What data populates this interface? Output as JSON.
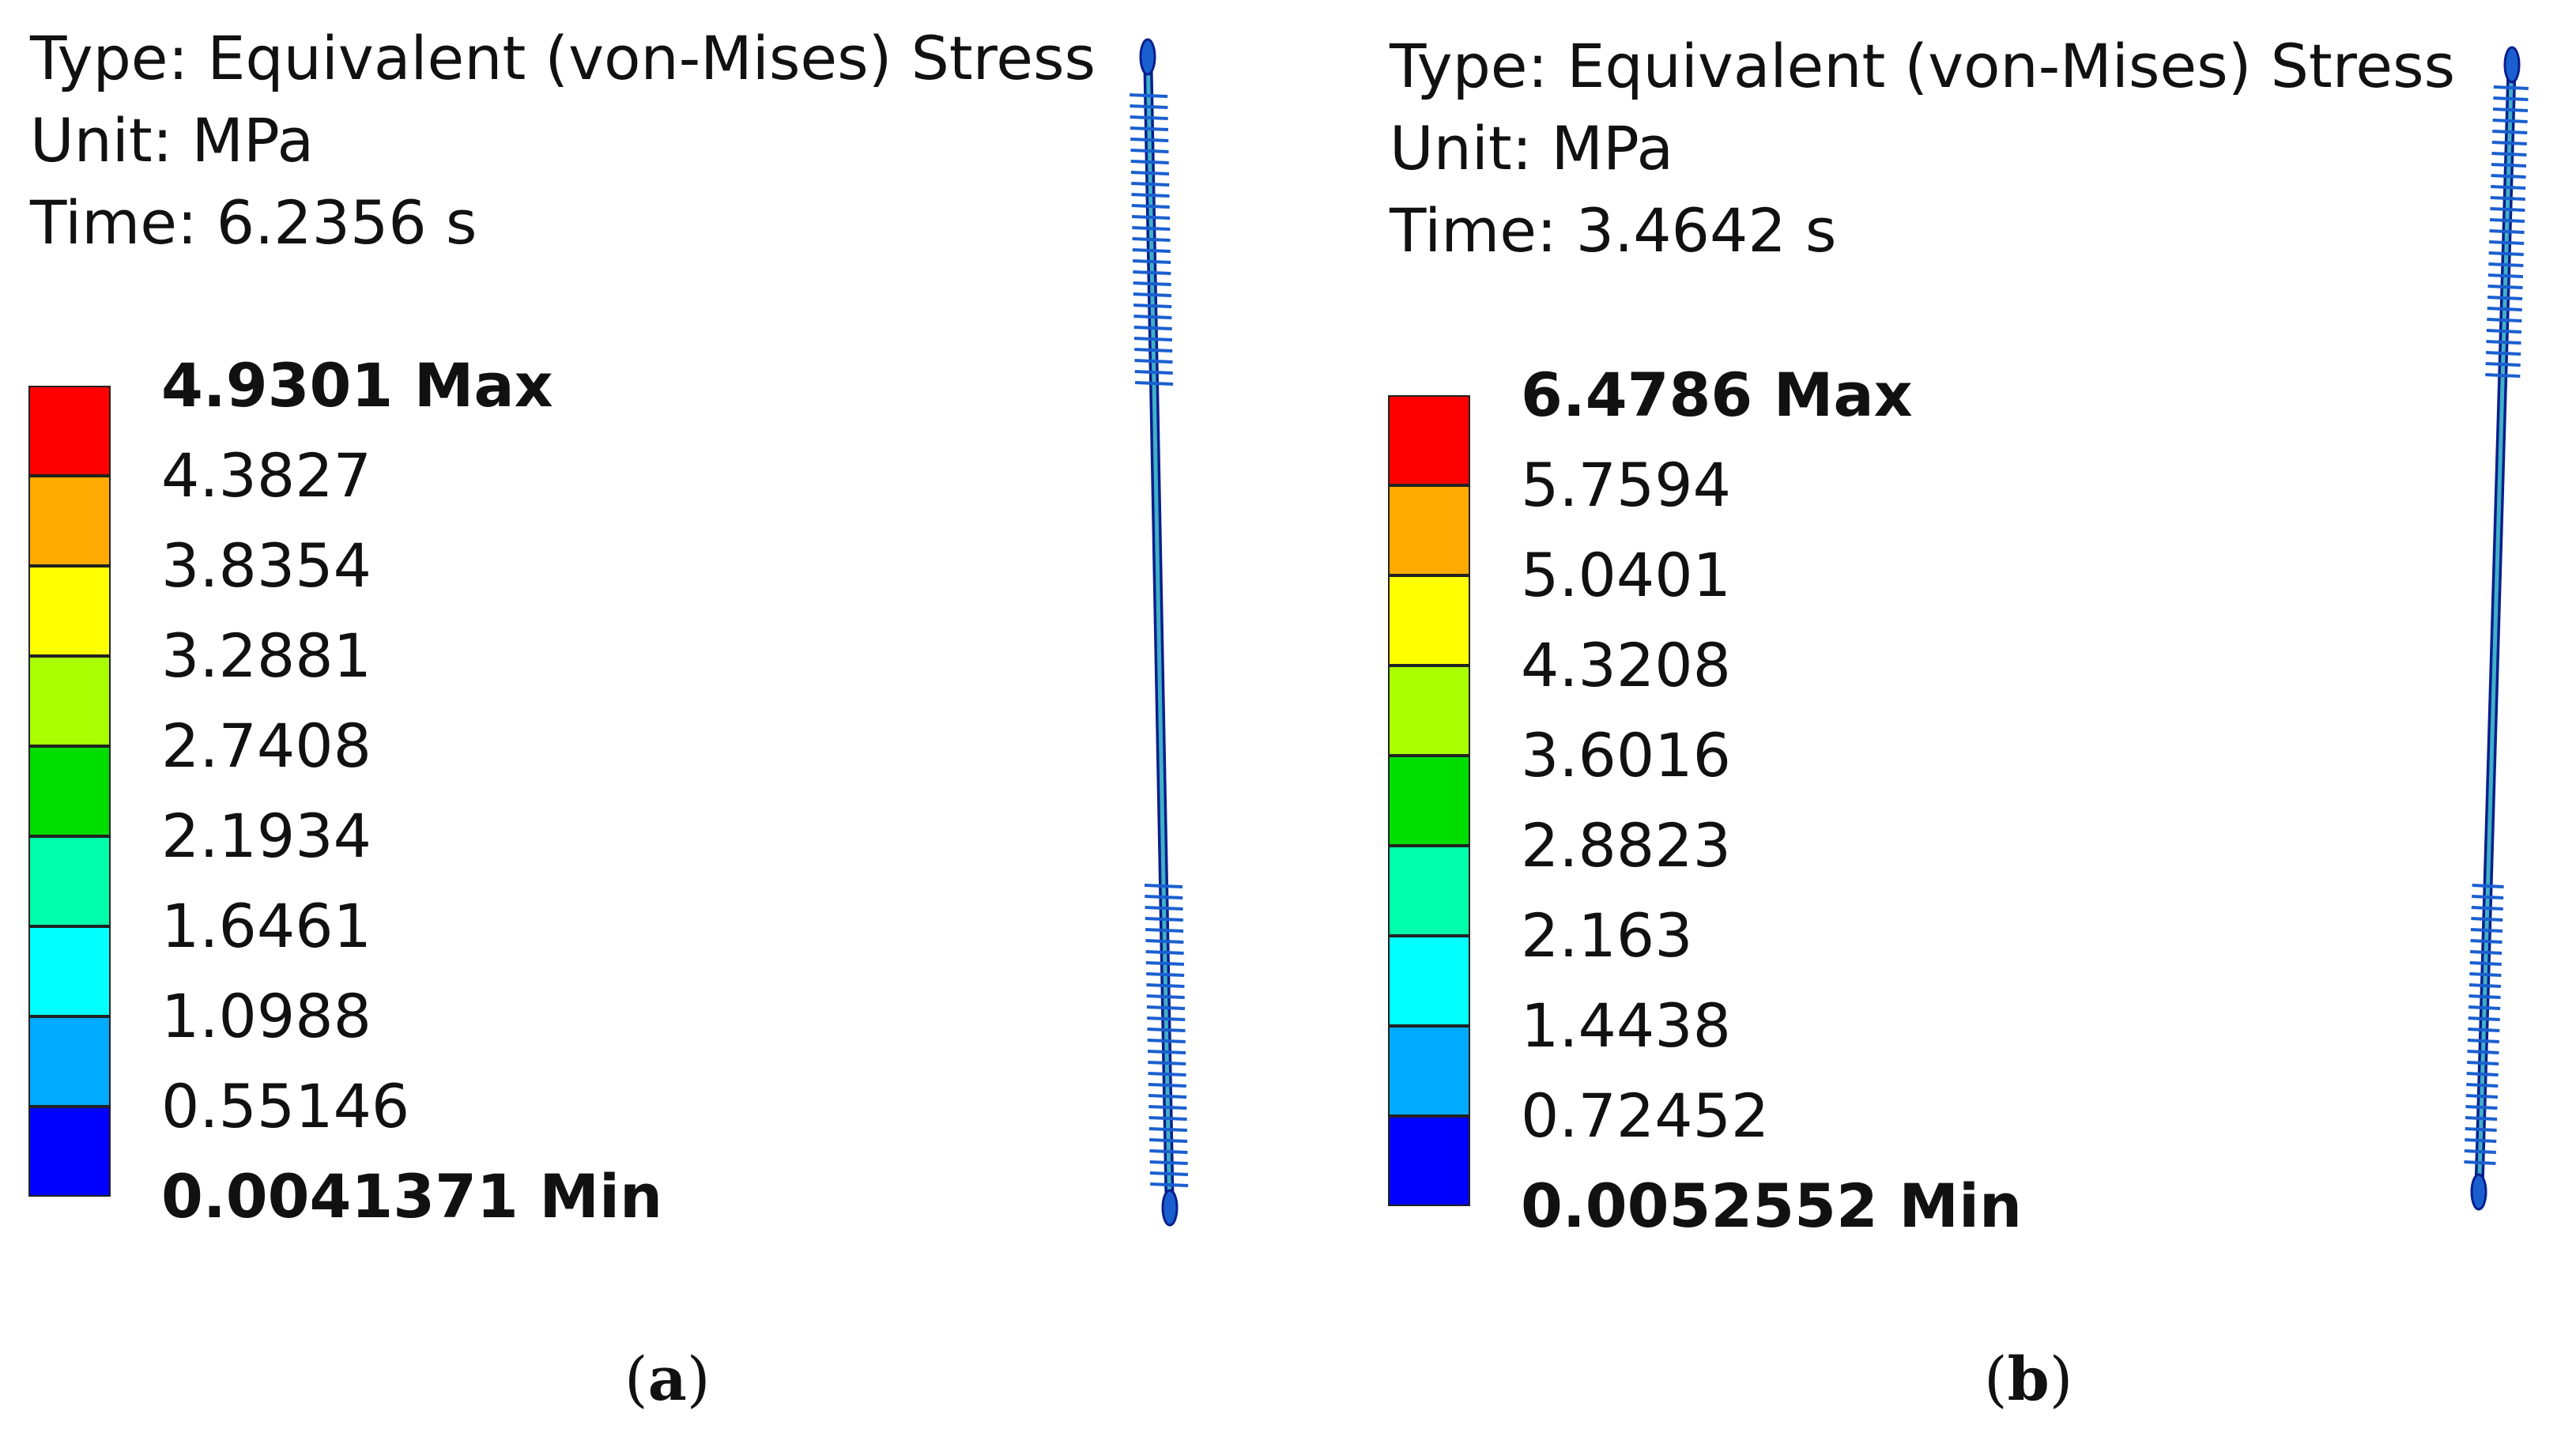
{
  "panels": [
    {
      "id": "a",
      "header": {
        "type": "Type: Equivalent (von-Mises) Stress",
        "unit": "Unit: MPa",
        "time": "Time: 6.2356 s"
      },
      "legend": {
        "max_label": "4.9301 Max",
        "values": [
          "4.3827",
          "3.8354",
          "3.2881",
          "2.7408",
          "2.1934",
          "1.6461",
          "1.0988",
          "0.55146"
        ],
        "min_label": "0.0041371 Min"
      },
      "caption": {
        "open": "(",
        "letter": "a",
        "close": ")"
      }
    },
    {
      "id": "b",
      "header": {
        "type": "Type: Equivalent (von-Mises) Stress",
        "unit": "Unit: MPa",
        "time": "Time: 3.4642 s"
      },
      "legend": {
        "max_label": "6.4786 Max",
        "values": [
          "5.7594",
          "5.0401",
          "4.3208",
          "3.6016",
          "2.8823",
          "2.163",
          "1.4438",
          "0.72452"
        ],
        "min_label": "0.0052552 Min"
      },
      "caption": {
        "open": "(",
        "letter": "b",
        "close": ")"
      }
    }
  ],
  "colors": {
    "legend_bands": [
      "#ff0000",
      "#ffaa00",
      "#ffff00",
      "#aaff00",
      "#00dd00",
      "#00ffaa",
      "#00ffff",
      "#00aaff",
      "#0000ff"
    ],
    "model_body": "#1a5fd0",
    "model_edge": "#0a1f8c",
    "model_inner": "#3fb0c8"
  }
}
